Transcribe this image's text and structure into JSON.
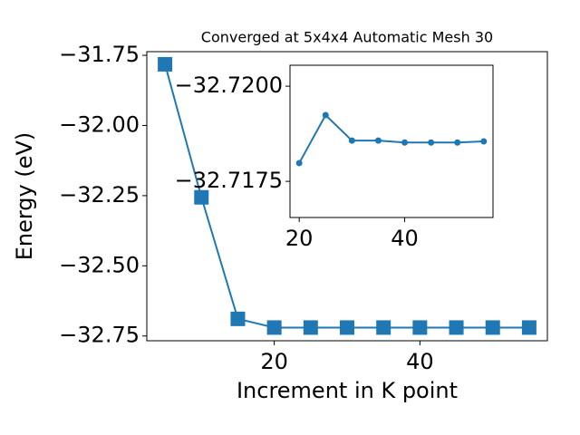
{
  "chart_data": [
    {
      "type": "line",
      "title": "Converged at 5x4x4 Automatic Mesh 30",
      "x_label": "Increment in K point",
      "y_label": "Energy (eV)",
      "x": [
        5,
        10,
        15,
        20,
        25,
        30,
        35,
        40,
        45,
        50,
        55
      ],
      "series": [
        {
          "color": "#1f77b4",
          "marker": "square",
          "values": [
            -31.782,
            -32.256,
            -32.689,
            -32.72,
            -32.72,
            -32.72,
            -32.72,
            -32.72,
            -32.72,
            -32.72,
            -32.72
          ]
        }
      ],
      "xlim": [
        2.5,
        57.5
      ],
      "ylim": [
        -32.767,
        -31.737
      ],
      "xticks": [
        20,
        40
      ],
      "yticks": [
        {
          "value": -31.75,
          "label": "−31.75"
        },
        {
          "value": -32.0,
          "label": "−32.00"
        },
        {
          "value": -32.25,
          "label": "−32.25"
        },
        {
          "value": -32.5,
          "label": "−32.50"
        },
        {
          "value": -32.75,
          "label": "−32.75"
        }
      ]
    },
    {
      "type": "line",
      "x": [
        20,
        25,
        30,
        35,
        40,
        45,
        50,
        55
      ],
      "series": [
        {
          "color": "#1f77b4",
          "marker": "circle",
          "values": [
            -32.71798,
            -32.71924,
            -32.71857,
            -32.71857,
            -32.71852,
            -32.71852,
            -32.71852,
            -32.71855
          ]
        }
      ],
      "xlim": [
        18.25,
        56.75
      ],
      "ylim": [
        -32.71655,
        -32.72055
      ],
      "xticks": [
        20,
        40
      ],
      "yticks": [
        {
          "value": -32.72,
          "label": "−32.7200"
        },
        {
          "value": -32.7175,
          "label": "−32.7175"
        }
      ]
    }
  ]
}
